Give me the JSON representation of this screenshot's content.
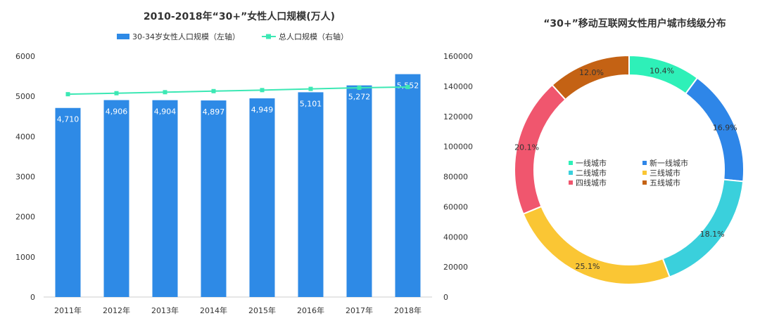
{
  "chart_data": [
    {
      "type": "bar",
      "title": "2010-2018年“30+”女性人口规模(万人)",
      "categories": [
        "2011年",
        "2012年",
        "2013年",
        "2014年",
        "2015年",
        "2016年",
        "2017年",
        "2018年"
      ],
      "series": [
        {
          "name": "30-34岁女性人口规模（左轴）",
          "type": "bar",
          "axis": "left",
          "values": [
            4710,
            4906,
            4904,
            4897,
            4949,
            5101,
            5272,
            5552
          ],
          "labels": [
            "4,710",
            "4,906",
            "4,904",
            "4,897",
            "4,949",
            "5,101",
            "5,272",
            "5,552"
          ],
          "color": "#2e8ae6"
        },
        {
          "name": "总人口规模（右轴）",
          "type": "line",
          "axis": "right",
          "values": [
            134735,
            135404,
            136072,
            136782,
            137462,
            138271,
            139008,
            139538
          ],
          "color": "#3ce8b4"
        }
      ],
      "y_left": {
        "ylim": [
          0,
          6000
        ],
        "ticks": [
          "0",
          "1000",
          "2000",
          "3000",
          "4000",
          "5000",
          "6000"
        ]
      },
      "y_right": {
        "ylim": [
          0,
          160000
        ],
        "ticks": [
          "0",
          "20000",
          "40000",
          "60000",
          "80000",
          "100000",
          "120000",
          "140000",
          "160000"
        ]
      },
      "legend": "top-center",
      "grid": false
    },
    {
      "type": "pie",
      "donut": true,
      "title": "“30+”移动互联网女性用户城市线级分布",
      "slices": [
        {
          "label": "一线城市",
          "value": 10.4,
          "text": "10.4%",
          "color": "#2ef0b8"
        },
        {
          "label": "新一线城市",
          "value": 16.9,
          "text": "16.9%",
          "color": "#2e86e8"
        },
        {
          "label": "二线城市",
          "value": 18.1,
          "text": "18.1%",
          "color": "#3ad0dc"
        },
        {
          "label": "三线城市",
          "value": 25.1,
          "text": "25.1%",
          "color": "#fac634"
        },
        {
          "label": "四线城市",
          "value": 20.1,
          "text": "20.1%",
          "color": "#f0566e"
        },
        {
          "label": "五线城市",
          "value": 12.0,
          "text": "12.0%",
          "color": "#c46214"
        }
      ],
      "legend": "center"
    }
  ]
}
